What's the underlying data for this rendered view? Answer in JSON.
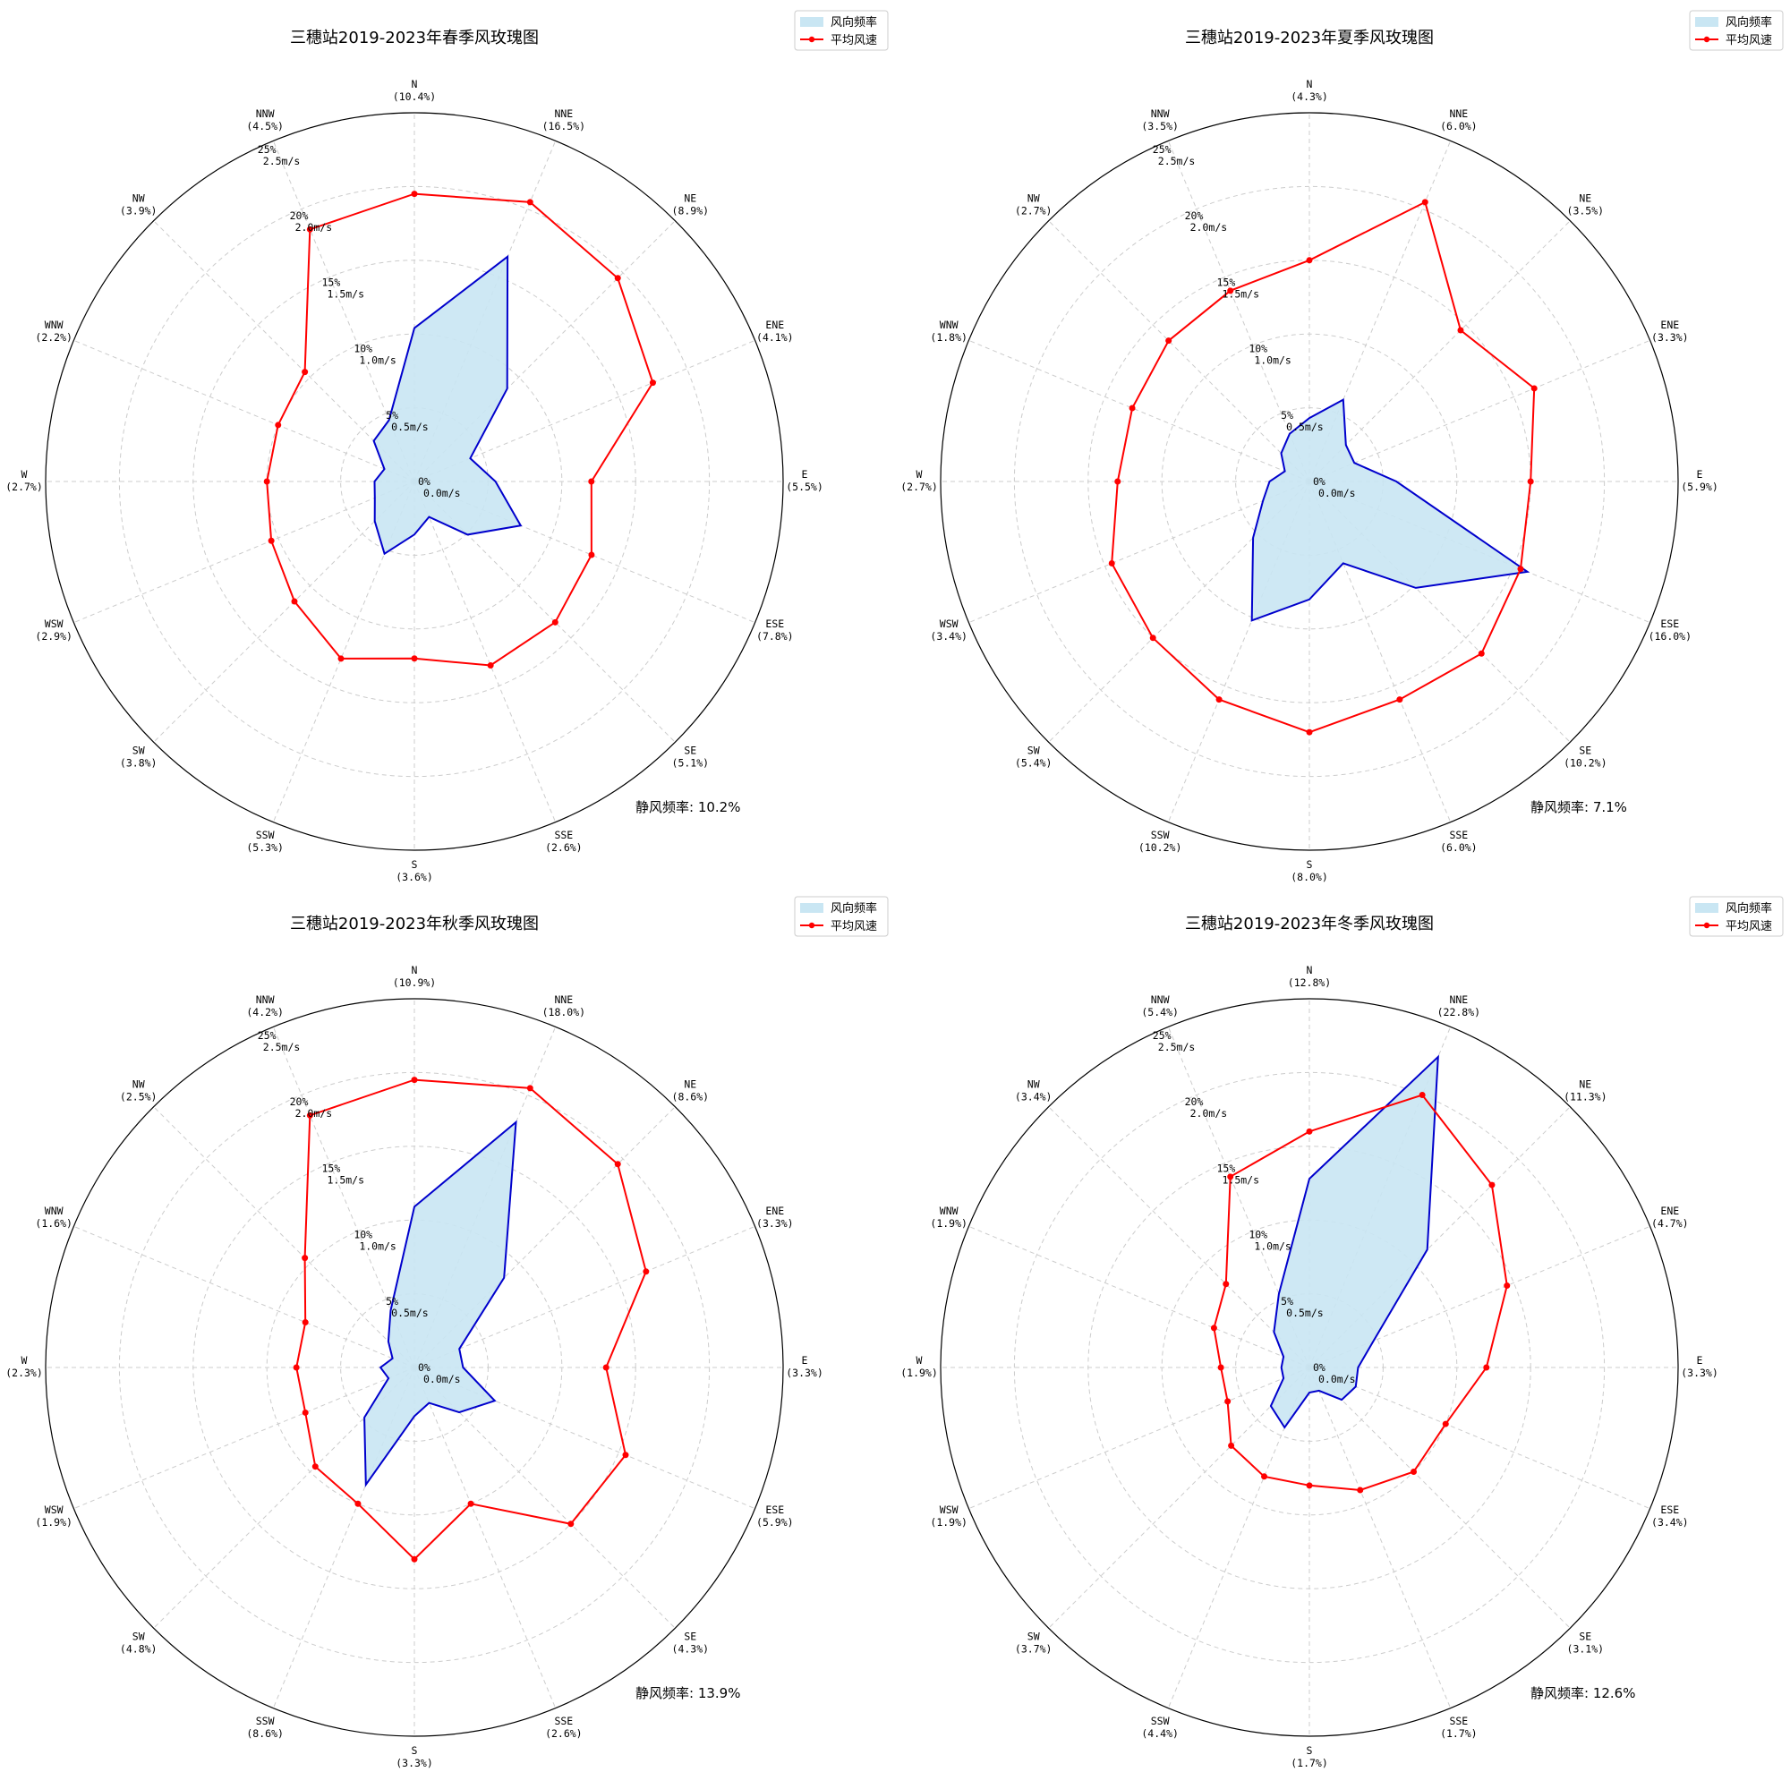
{
  "chart_data": [
    {
      "type": "radar",
      "title": "三穗站2019-2023年春季风玫瑰图",
      "directions": [
        "N",
        "NNE",
        "NE",
        "ENE",
        "E",
        "ESE",
        "SE",
        "SSE",
        "S",
        "SSW",
        "SW",
        "WSW",
        "W",
        "WNW",
        "NW",
        "NNW"
      ],
      "freq_labels": [
        "(10.4%)",
        "(16.5%)",
        "(8.9%)",
        "(4.1%)",
        "(5.5%)",
        "(7.8%)",
        "(5.1%)",
        "(2.6%)",
        "(3.6%)",
        "(5.3%)",
        "(3.8%)",
        "(2.9%)",
        "(2.7%)",
        "(2.2%)",
        "(3.9%)",
        "(4.5%)"
      ],
      "frequency": [
        10.4,
        16.5,
        8.9,
        4.1,
        5.5,
        7.8,
        5.1,
        2.6,
        3.6,
        5.3,
        3.8,
        2.9,
        2.7,
        2.2,
        3.9,
        4.5
      ],
      "speed": [
        1.95,
        2.05,
        1.95,
        1.75,
        1.2,
        1.3,
        1.35,
        1.35,
        1.2,
        1.3,
        1.15,
        1.05,
        1.0,
        1.0,
        1.05,
        1.85
      ],
      "rlim_freq": [
        0,
        25
      ],
      "rlim_speed": [
        0,
        2.5
      ],
      "ring_freq_labels": [
        "0%",
        "5%",
        "10%",
        "15%",
        "20%",
        "25%"
      ],
      "ring_speed_labels": [
        "0.0m/s",
        "0.5m/s",
        "1.0m/s",
        "1.5m/s",
        "2.0m/s",
        "2.5m/s"
      ],
      "legend": [
        "风向频率",
        "平均风速"
      ],
      "calm": "静风频率: 10.2%"
    },
    {
      "type": "radar",
      "title": "三穗站2019-2023年夏季风玫瑰图",
      "directions": [
        "N",
        "NNE",
        "NE",
        "ENE",
        "E",
        "ESE",
        "SE",
        "SSE",
        "S",
        "SSW",
        "SW",
        "WSW",
        "W",
        "WNW",
        "NW",
        "NNW"
      ],
      "freq_labels": [
        "(4.3%)",
        "(6.0%)",
        "(3.5%)",
        "(3.3%)",
        "(5.9%)",
        "(16.0%)",
        "(10.2%)",
        "(6.0%)",
        "(8.0%)",
        "(10.2%)",
        "(5.4%)",
        "(3.4%)",
        "(2.7%)",
        "(1.8%)",
        "(2.7%)",
        "(3.5%)"
      ],
      "frequency": [
        4.3,
        6.0,
        3.5,
        3.3,
        5.9,
        16.0,
        10.2,
        6.0,
        8.0,
        10.2,
        5.4,
        3.4,
        2.7,
        1.8,
        2.7,
        3.5
      ],
      "speed": [
        1.5,
        2.05,
        1.45,
        1.65,
        1.5,
        1.55,
        1.65,
        1.6,
        1.7,
        1.6,
        1.5,
        1.45,
        1.3,
        1.3,
        1.35,
        1.4
      ],
      "rlim_freq": [
        0,
        25
      ],
      "rlim_speed": [
        0,
        2.5
      ],
      "ring_freq_labels": [
        "0%",
        "5%",
        "10%",
        "15%",
        "20%",
        "25%"
      ],
      "ring_speed_labels": [
        "0.0m/s",
        "0.5m/s",
        "1.0m/s",
        "1.5m/s",
        "2.0m/s",
        "2.5m/s"
      ],
      "legend": [
        "风向频率",
        "平均风速"
      ],
      "calm": "静风频率: 7.1%"
    },
    {
      "type": "radar",
      "title": "三穗站2019-2023年秋季风玫瑰图",
      "directions": [
        "N",
        "NNE",
        "NE",
        "ENE",
        "E",
        "ESE",
        "SE",
        "SSE",
        "S",
        "SSW",
        "SW",
        "WSW",
        "W",
        "WNW",
        "NW",
        "NNW"
      ],
      "freq_labels": [
        "(10.9%)",
        "(18.0%)",
        "(8.6%)",
        "(3.3%)",
        "(3.3%)",
        "(5.9%)",
        "(4.3%)",
        "(2.6%)",
        "(3.3%)",
        "(8.6%)",
        "(4.8%)",
        "(1.9%)",
        "(2.3%)",
        "(1.6%)",
        "(2.5%)",
        "(4.2%)"
      ],
      "frequency": [
        10.9,
        18.0,
        8.6,
        3.3,
        3.3,
        5.9,
        4.3,
        2.6,
        3.3,
        8.6,
        4.8,
        1.9,
        2.3,
        1.6,
        2.5,
        4.2
      ],
      "speed": [
        1.95,
        2.05,
        1.95,
        1.7,
        1.3,
        1.55,
        1.5,
        1.0,
        1.3,
        1.0,
        0.95,
        0.8,
        0.8,
        0.8,
        1.05,
        1.85
      ],
      "rlim_freq": [
        0,
        25
      ],
      "rlim_speed": [
        0,
        2.5
      ],
      "ring_freq_labels": [
        "0%",
        "5%",
        "10%",
        "15%",
        "20%",
        "25%"
      ],
      "ring_speed_labels": [
        "0.0m/s",
        "0.5m/s",
        "1.0m/s",
        "1.5m/s",
        "2.0m/s",
        "2.5m/s"
      ],
      "legend": [
        "风向频率",
        "平均风速"
      ],
      "calm": "静风频率: 13.9%"
    },
    {
      "type": "radar",
      "title": "三穗站2019-2023年冬季风玫瑰图",
      "directions": [
        "N",
        "NNE",
        "NE",
        "ENE",
        "E",
        "ESE",
        "SE",
        "SSE",
        "S",
        "SSW",
        "SW",
        "WSW",
        "W",
        "WNW",
        "NW",
        "NNW"
      ],
      "freq_labels": [
        "(12.8%)",
        "(22.8%)",
        "(11.3%)",
        "(4.7%)",
        "(3.3%)",
        "(3.4%)",
        "(3.1%)",
        "(1.7%)",
        "(1.7%)",
        "(4.4%)",
        "(3.7%)",
        "(1.9%)",
        "(1.9%)",
        "(1.9%)",
        "(3.4%)",
        "(5.4%)"
      ],
      "frequency": [
        12.8,
        22.8,
        11.3,
        4.7,
        3.3,
        3.4,
        3.1,
        1.7,
        1.7,
        4.4,
        3.7,
        1.9,
        1.9,
        1.9,
        3.4,
        5.4
      ],
      "speed": [
        1.6,
        2.0,
        1.75,
        1.45,
        1.2,
        1.0,
        1.0,
        0.9,
        0.8,
        0.8,
        0.75,
        0.6,
        0.6,
        0.7,
        0.8,
        1.4
      ],
      "rlim_freq": [
        0,
        25
      ],
      "rlim_speed": [
        0,
        2.5
      ],
      "ring_freq_labels": [
        "0%",
        "5%",
        "10%",
        "15%",
        "20%",
        "25%"
      ],
      "ring_speed_labels": [
        "0.0m/s",
        "0.5m/s",
        "1.0m/s",
        "1.5m/s",
        "2.0m/s",
        "2.5m/s"
      ],
      "legend": [
        "风向频率",
        "平均风速"
      ],
      "calm": "静风频率: 12.6%"
    }
  ],
  "colors": {
    "freq_fill": "#c9e6f3",
    "freq_line": "#0000cc",
    "speed_line": "#ff0000",
    "grid": "#cccccc",
    "frame": "#000000"
  }
}
